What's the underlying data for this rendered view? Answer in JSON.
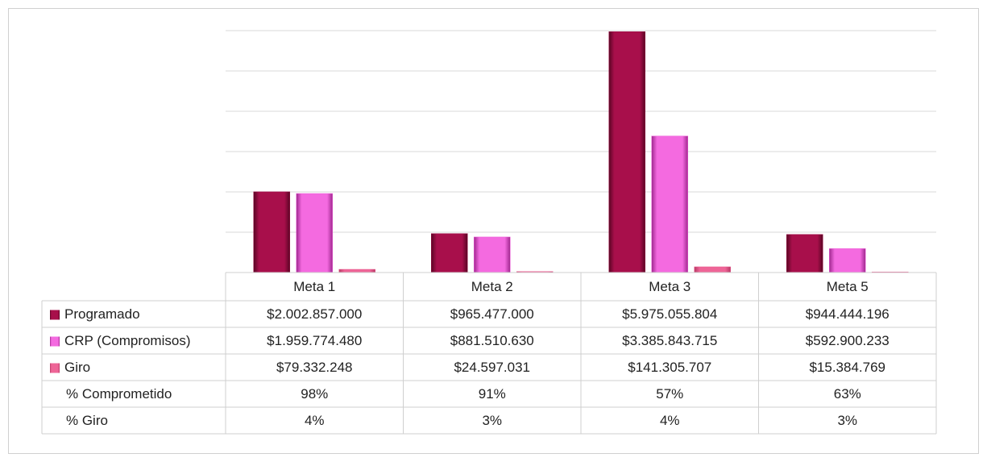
{
  "chart_data": {
    "type": "bar",
    "categories": [
      "Meta 1",
      "Meta 2",
      "Meta 3",
      "Meta 5"
    ],
    "series": [
      {
        "name": "Programado",
        "color": "#9b0c45",
        "values": [
          2002857000,
          965477000,
          5975055804,
          944444196
        ],
        "value_labels": [
          "$2.002.857.000",
          "$965.477.000",
          "$5.975.055.804",
          "$944.444.196"
        ]
      },
      {
        "name": "CRP (Compromisos)",
        "color": "#ee5ad8",
        "values": [
          1959774480,
          881510630,
          3385843715,
          592900233
        ],
        "value_labels": [
          "$1.959.774.480",
          "$881.510.630",
          "$3.385.843.715",
          "$592.900.233"
        ]
      },
      {
        "name": "Giro",
        "color": "#ea5a8e",
        "values": [
          79332248,
          24597031,
          141305707,
          15384769
        ],
        "value_labels": [
          "$79.332.248",
          "$24.597.031",
          "$141.305.707",
          "$15.384.769"
        ]
      }
    ],
    "table_rows": [
      {
        "name": "% Comprometido",
        "values": [
          98,
          91,
          57,
          63
        ],
        "value_labels": [
          "98%",
          "91%",
          "57%",
          "63%"
        ]
      },
      {
        "name": "% Giro",
        "values": [
          4,
          3,
          4,
          3
        ],
        "value_labels": [
          "4%",
          "3%",
          "4%",
          "3%"
        ]
      }
    ],
    "ylim": [
      0,
      6000000000
    ],
    "yticks": [
      0,
      1000000000,
      2000000000,
      3000000000,
      4000000000,
      5000000000,
      6000000000
    ],
    "grid": true
  }
}
